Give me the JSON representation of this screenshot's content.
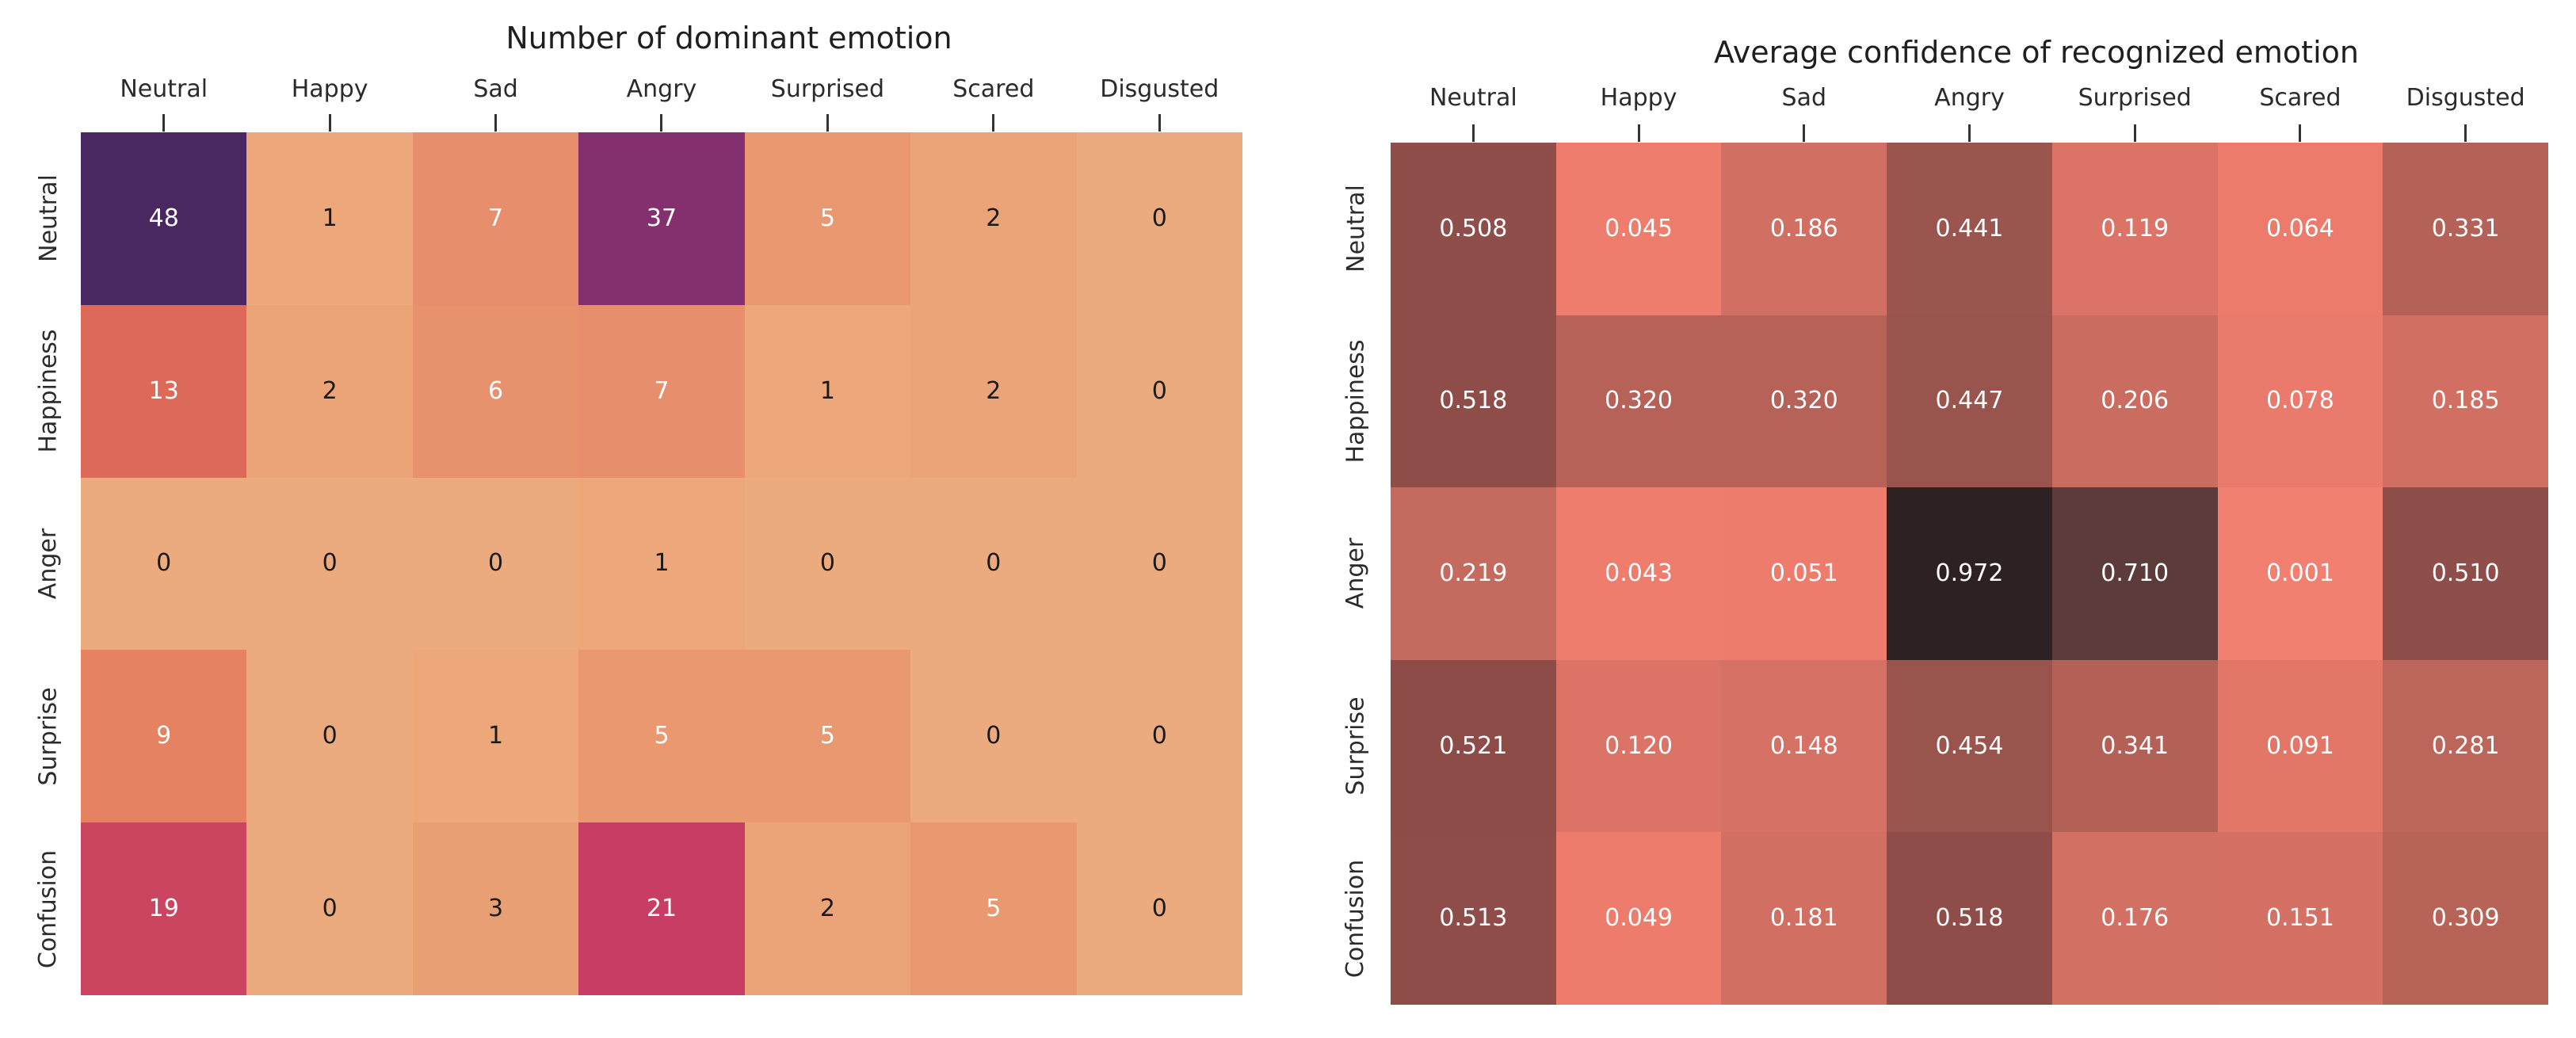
{
  "figure": {
    "background": "#ffffff"
  },
  "chart_data": [
    {
      "type": "heatmap",
      "title": "Number of dominant emotion",
      "x_labels": [
        "Neutral",
        "Happy",
        "Sad",
        "Angry",
        "Surprised",
        "Scared",
        "Disgusted"
      ],
      "y_labels": [
        "Neutral",
        "Happiness",
        "Anger",
        "Surprise",
        "Confusion"
      ],
      "values": [
        [
          48,
          1,
          7,
          37,
          5,
          2,
          0
        ],
        [
          13,
          2,
          6,
          7,
          1,
          2,
          0
        ],
        [
          0,
          0,
          0,
          1,
          0,
          0,
          0
        ],
        [
          9,
          0,
          1,
          5,
          5,
          0,
          0
        ],
        [
          19,
          0,
          3,
          21,
          2,
          5,
          0
        ]
      ],
      "cell_labels": [
        [
          "48",
          "1",
          "7",
          "37",
          "5",
          "2",
          "0"
        ],
        [
          "13",
          "2",
          "6",
          "7",
          "1",
          "2",
          "0"
        ],
        [
          "0",
          "0",
          "0",
          "1",
          "0",
          "0",
          "0"
        ],
        [
          "9",
          "0",
          "1",
          "5",
          "5",
          "0",
          "0"
        ],
        [
          "19",
          "0",
          "3",
          "21",
          "2",
          "5",
          "0"
        ]
      ],
      "cell_colors": [
        [
          "#492760",
          "#ECA87B",
          "#E78F6C",
          "#84306F",
          "#E99870",
          "#EAA478",
          "#ECAB7E"
        ],
        [
          "#DD6958",
          "#EAA478",
          "#E8926D",
          "#E78F6C",
          "#ECA87B",
          "#EAA478",
          "#ECAB7E"
        ],
        [
          "#ECAB7E",
          "#ECAB7E",
          "#ECAB7E",
          "#ECA87B",
          "#ECAB7E",
          "#ECAB7E",
          "#ECAB7E"
        ],
        [
          "#E48262",
          "#ECAB7E",
          "#ECA87B",
          "#E99870",
          "#E99870",
          "#ECAB7E",
          "#ECAB7E"
        ],
        [
          "#CC4560",
          "#ECAB7E",
          "#E99F74",
          "#C73D63",
          "#EAA478",
          "#E99870",
          "#ECAB7E"
        ]
      ],
      "text_colors": [
        [
          "#ffffff",
          "#1a1a1a",
          "#ffffff",
          "#ffffff",
          "#ffffff",
          "#1a1a1a",
          "#1a1a1a"
        ],
        [
          "#ffffff",
          "#1a1a1a",
          "#ffffff",
          "#ffffff",
          "#1a1a1a",
          "#1a1a1a",
          "#1a1a1a"
        ],
        [
          "#1a1a1a",
          "#1a1a1a",
          "#1a1a1a",
          "#1a1a1a",
          "#1a1a1a",
          "#1a1a1a",
          "#1a1a1a"
        ],
        [
          "#ffffff",
          "#1a1a1a",
          "#1a1a1a",
          "#ffffff",
          "#ffffff",
          "#1a1a1a",
          "#1a1a1a"
        ],
        [
          "#ffffff",
          "#1a1a1a",
          "#1a1a1a",
          "#ffffff",
          "#1a1a1a",
          "#ffffff",
          "#1a1a1a"
        ]
      ]
    },
    {
      "type": "heatmap",
      "title": "Average confidence of recognized emotion",
      "x_labels": [
        "Neutral",
        "Happy",
        "Sad",
        "Angry",
        "Surprised",
        "Scared",
        "Disgusted"
      ],
      "y_labels": [
        "Neutral",
        "Happiness",
        "Anger",
        "Surprise",
        "Confusion"
      ],
      "values": [
        [
          0.508,
          0.045,
          0.186,
          0.441,
          0.119,
          0.064,
          0.331
        ],
        [
          0.518,
          0.32,
          0.32,
          0.447,
          0.206,
          0.078,
          0.185
        ],
        [
          0.219,
          0.043,
          0.051,
          0.972,
          0.71,
          0.001,
          0.51
        ],
        [
          0.521,
          0.12,
          0.148,
          0.454,
          0.341,
          0.091,
          0.281
        ],
        [
          0.513,
          0.049,
          0.181,
          0.518,
          0.176,
          0.151,
          0.309
        ]
      ],
      "cell_labels": [
        [
          "0.508",
          "0.045",
          "0.186",
          "0.441",
          "0.119",
          "0.064",
          "0.331"
        ],
        [
          "0.518",
          "0.320",
          "0.320",
          "0.447",
          "0.206",
          "0.078",
          "0.185"
        ],
        [
          "0.219",
          "0.043",
          "0.051",
          "0.972",
          "0.710",
          "0.001",
          "0.510"
        ],
        [
          "0.521",
          "0.120",
          "0.148",
          "0.454",
          "0.341",
          "0.091",
          "0.281"
        ],
        [
          "0.513",
          "0.049",
          "0.181",
          "0.518",
          "0.176",
          "0.151",
          "0.309"
        ]
      ],
      "cell_colors": [
        [
          "#8F4E49",
          "#EF7D6E",
          "#D06F62",
          "#9A554E",
          "#DC7367",
          "#EC7B6C",
          "#B46157"
        ],
        [
          "#8E4D48",
          "#B66258",
          "#B66258",
          "#9A544E",
          "#CB6C60",
          "#EA7A6B",
          "#D06F62"
        ],
        [
          "#C56A5E",
          "#EF7D6E",
          "#EE7C6D",
          "#2E2124",
          "#5E3B3B",
          "#F28070",
          "#8E4E49"
        ],
        [
          "#8D4C48",
          "#DC7367",
          "#D67165",
          "#99544D",
          "#B36157",
          "#E27768",
          "#BC655A"
        ],
        [
          "#8E4D49",
          "#EE7C6D",
          "#D06F62",
          "#8E4D48",
          "#D17063",
          "#D57064",
          "#B86358"
        ]
      ],
      "text_colors": [
        [
          "#ffffff",
          "#ffffff",
          "#ffffff",
          "#ffffff",
          "#ffffff",
          "#ffffff",
          "#ffffff"
        ],
        [
          "#ffffff",
          "#ffffff",
          "#ffffff",
          "#ffffff",
          "#ffffff",
          "#ffffff",
          "#ffffff"
        ],
        [
          "#ffffff",
          "#ffffff",
          "#ffffff",
          "#ffffff",
          "#ffffff",
          "#ffffff",
          "#ffffff"
        ],
        [
          "#ffffff",
          "#ffffff",
          "#ffffff",
          "#ffffff",
          "#ffffff",
          "#ffffff",
          "#ffffff"
        ],
        [
          "#ffffff",
          "#ffffff",
          "#ffffff",
          "#ffffff",
          "#ffffff",
          "#ffffff",
          "#ffffff"
        ]
      ]
    }
  ]
}
